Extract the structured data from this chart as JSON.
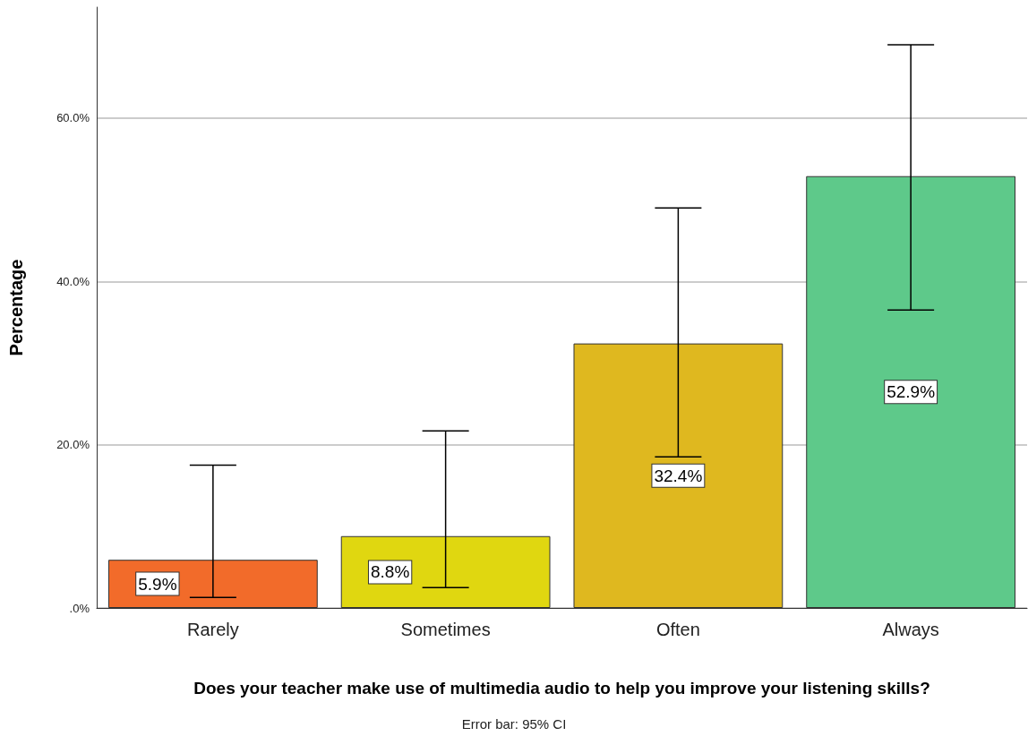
{
  "chart_data": {
    "type": "bar",
    "xlabel": "Does your teacher make use of multimedia audio to help you improve your listening skills?",
    "ylabel": "Percentage",
    "categories": [
      "Rarely",
      "Sometimes",
      "Often",
      "Always"
    ],
    "values": [
      5.9,
      8.8,
      32.4,
      52.9
    ],
    "colors": [
      "#f26b2a",
      "#e0d710",
      "#dfb81f",
      "#5ec98a"
    ],
    "value_labels": [
      "5.9%",
      "8.8%",
      "32.4%",
      "52.9%"
    ],
    "errors": [
      [
        1.3,
        17.5
      ],
      [
        2.5,
        21.7
      ],
      [
        18.5,
        49.0
      ],
      [
        36.5,
        69.0
      ]
    ],
    "ylim": [
      0,
      73.6
    ],
    "yticks": [
      {
        "value": 0,
        "label": ".0%"
      },
      {
        "value": 20,
        "label": "20.0%"
      },
      {
        "value": 40,
        "label": "40.0%"
      },
      {
        "value": 60,
        "label": "60.0%"
      }
    ],
    "grid": "y",
    "annotations": [
      "Error bar: 95% CI"
    ]
  }
}
